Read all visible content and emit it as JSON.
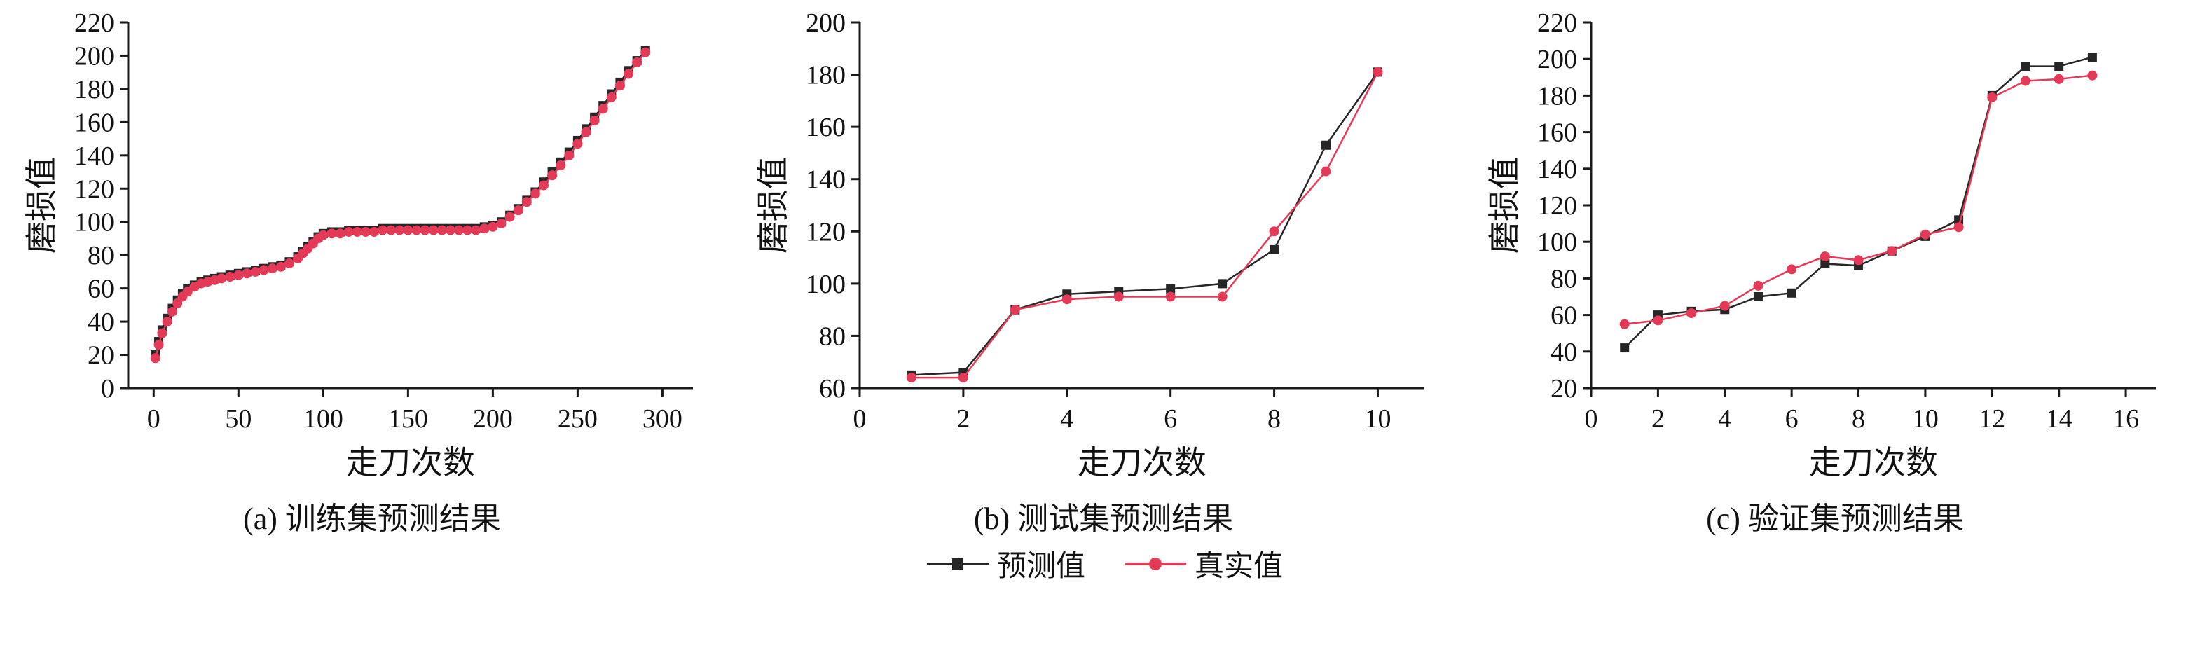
{
  "legend": {
    "items": [
      {
        "label": "预测值",
        "color": "#262626",
        "marker": "square"
      },
      {
        "label": "真实值",
        "color": "#e53a57",
        "marker": "circle"
      }
    ]
  },
  "chart_data": [
    {
      "id": "a",
      "type": "line",
      "title": "(a) 训练集预测结果",
      "xlabel": "走刀次数",
      "ylabel": "磨损值",
      "xlim": [
        -15,
        318
      ],
      "ylim": [
        0,
        220
      ],
      "xticks": [
        0,
        50,
        100,
        150,
        200,
        250,
        300
      ],
      "yticks": [
        0,
        20,
        40,
        60,
        80,
        100,
        120,
        140,
        160,
        180,
        200,
        220
      ],
      "series": [
        {
          "name": "预测值",
          "color": "#262626",
          "marker": "square",
          "x": [
            1,
            3,
            5,
            8,
            11,
            14,
            17,
            20,
            24,
            28,
            32,
            36,
            40,
            45,
            50,
            55,
            60,
            65,
            70,
            75,
            80,
            85,
            88,
            91,
            94,
            97,
            100,
            105,
            110,
            115,
            120,
            125,
            130,
            135,
            140,
            145,
            150,
            155,
            160,
            165,
            170,
            175,
            180,
            185,
            190,
            195,
            200,
            205,
            210,
            215,
            220,
            225,
            230,
            235,
            240,
            245,
            250,
            255,
            260,
            265,
            270,
            275,
            280,
            285,
            290
          ],
          "y": [
            20,
            28,
            35,
            42,
            48,
            53,
            57,
            60,
            62,
            64,
            65,
            66,
            67,
            68,
            69,
            70,
            71,
            72,
            73,
            74,
            76,
            79,
            82,
            85,
            88,
            91,
            93,
            94,
            94,
            95,
            95,
            95,
            95,
            96,
            96,
            96,
            96,
            96,
            96,
            96,
            96,
            96,
            96,
            96,
            96,
            97,
            98,
            100,
            104,
            108,
            113,
            118,
            124,
            130,
            136,
            142,
            149,
            156,
            163,
            170,
            177,
            184,
            191,
            197,
            203
          ]
        },
        {
          "name": "真实值",
          "color": "#e53a57",
          "marker": "circle",
          "x": [
            1,
            3,
            5,
            8,
            11,
            14,
            17,
            20,
            24,
            28,
            32,
            36,
            40,
            45,
            50,
            55,
            60,
            65,
            70,
            75,
            80,
            85,
            88,
            91,
            94,
            97,
            100,
            105,
            110,
            115,
            120,
            125,
            130,
            135,
            140,
            145,
            150,
            155,
            160,
            165,
            170,
            175,
            180,
            185,
            190,
            195,
            200,
            205,
            210,
            215,
            220,
            225,
            230,
            235,
            240,
            245,
            250,
            255,
            260,
            265,
            270,
            275,
            280,
            285,
            290
          ],
          "y": [
            18,
            26,
            33,
            40,
            46,
            51,
            55,
            58,
            61,
            63,
            64,
            65,
            66,
            67,
            68,
            69,
            70,
            71,
            72,
            73,
            75,
            78,
            81,
            84,
            87,
            90,
            92,
            93,
            93,
            94,
            94,
            94,
            94,
            95,
            95,
            95,
            95,
            95,
            95,
            95,
            95,
            95,
            95,
            95,
            95,
            96,
            97,
            99,
            103,
            107,
            112,
            117,
            122,
            128,
            134,
            140,
            147,
            154,
            161,
            168,
            175,
            182,
            189,
            196,
            202
          ]
        }
      ]
    },
    {
      "id": "b",
      "type": "line",
      "title": "(b) 测试集预测结果",
      "xlabel": "走刀次数",
      "ylabel": "磨损值",
      "xlim": [
        0,
        10.9
      ],
      "ylim": [
        60,
        200
      ],
      "xticks": [
        0,
        2,
        4,
        6,
        8,
        10
      ],
      "yticks": [
        60,
        80,
        100,
        120,
        140,
        160,
        180,
        200
      ],
      "series": [
        {
          "name": "预测值",
          "color": "#262626",
          "marker": "square",
          "x": [
            1,
            2,
            3,
            4,
            5,
            6,
            7,
            8,
            9,
            10
          ],
          "y": [
            65,
            66,
            90,
            96,
            97,
            98,
            100,
            113,
            153,
            181
          ]
        },
        {
          "name": "真实值",
          "color": "#e53a57",
          "marker": "circle",
          "x": [
            1,
            2,
            3,
            4,
            5,
            6,
            7,
            8,
            9,
            10
          ],
          "y": [
            64,
            64,
            90,
            94,
            95,
            95,
            95,
            120,
            143,
            181
          ]
        }
      ]
    },
    {
      "id": "c",
      "type": "line",
      "title": "(c) 验证集预测结果",
      "xlabel": "走刀次数",
      "ylabel": "磨损值",
      "xlim": [
        0,
        16.9
      ],
      "ylim": [
        20,
        220
      ],
      "xticks": [
        0,
        2,
        4,
        6,
        8,
        10,
        12,
        14,
        16
      ],
      "yticks": [
        20,
        40,
        60,
        80,
        100,
        120,
        140,
        160,
        180,
        200,
        220
      ],
      "series": [
        {
          "name": "预测值",
          "color": "#262626",
          "marker": "square",
          "x": [
            1,
            2,
            3,
            4,
            5,
            6,
            7,
            8,
            9,
            10,
            11,
            12,
            13,
            14,
            15
          ],
          "y": [
            42,
            60,
            62,
            63,
            70,
            72,
            88,
            87,
            95,
            103,
            112,
            180,
            196,
            196,
            201
          ]
        },
        {
          "name": "真实值",
          "color": "#e53a57",
          "marker": "circle",
          "x": [
            1,
            2,
            3,
            4,
            5,
            6,
            7,
            8,
            9,
            10,
            11,
            12,
            13,
            14,
            15
          ],
          "y": [
            55,
            57,
            61,
            65,
            76,
            85,
            92,
            90,
            95,
            104,
            108,
            179,
            188,
            189,
            191
          ]
        }
      ]
    }
  ]
}
